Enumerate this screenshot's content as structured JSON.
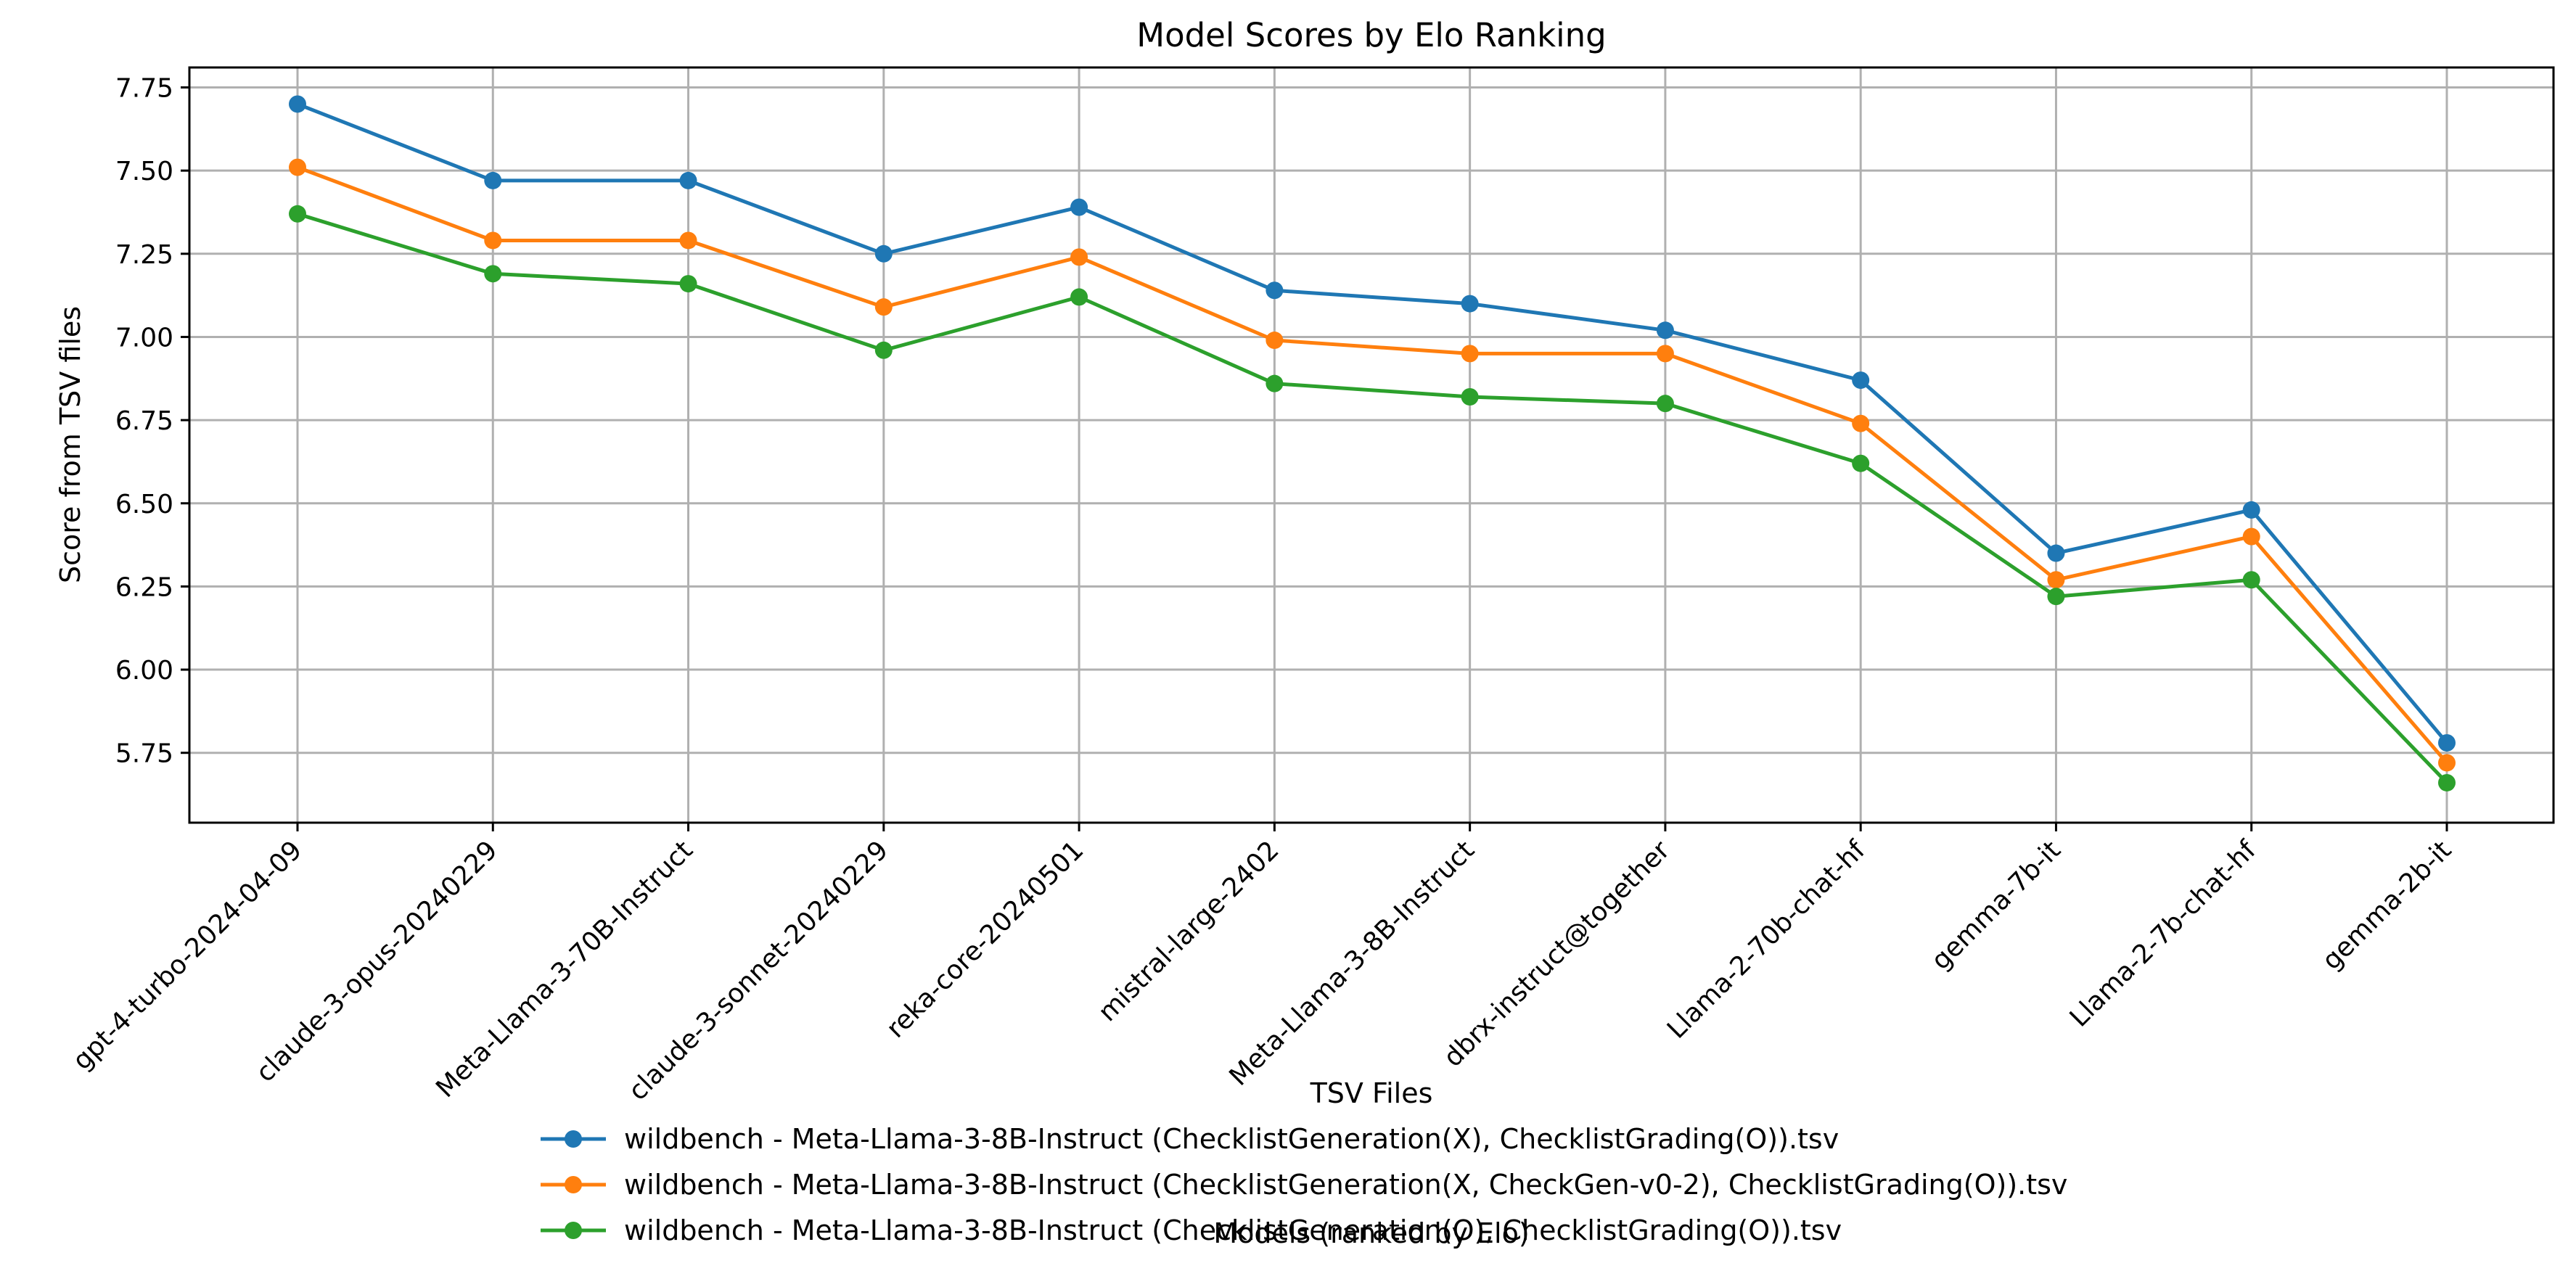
{
  "chart_data": {
    "type": "line",
    "title": "Model Scores by Elo Ranking",
    "xlabel": "Models (ranked by Elo)",
    "ylabel": "Score from TSV files",
    "categories": [
      "gpt-4-turbo-2024-04-09",
      "claude-3-opus-20240229",
      "Meta-Llama-3-70B-Instruct",
      "claude-3-sonnet-20240229",
      "reka-core-20240501",
      "mistral-large-2402",
      "Meta-Llama-3-8B-Instruct",
      "dbrx-instruct@together",
      "Llama-2-70b-chat-hf",
      "gemma-7b-it",
      "Llama-2-7b-chat-hf",
      "gemma-2b-it"
    ],
    "ylim": [
      5.54,
      7.81
    ],
    "yticks": [
      "5.75",
      "6.00",
      "6.25",
      "6.50",
      "6.75",
      "7.00",
      "7.25",
      "7.50",
      "7.75"
    ],
    "grid": true,
    "legend": {
      "title": "TSV Files",
      "placement": "bottom-center"
    },
    "series": [
      {
        "name": "wildbench - Meta-Llama-3-8B-Instruct (ChecklistGeneration(X), ChecklistGrading(O)).tsv",
        "color": "#1f77b4",
        "values": [
          7.7,
          7.47,
          7.47,
          7.25,
          7.39,
          7.14,
          7.1,
          7.02,
          6.87,
          6.35,
          6.48,
          5.78
        ]
      },
      {
        "name": "wildbench - Meta-Llama-3-8B-Instruct (ChecklistGeneration(X, CheckGen-v0-2), ChecklistGrading(O)).tsv",
        "color": "#ff7f0e",
        "values": [
          7.51,
          7.29,
          7.29,
          7.09,
          7.24,
          6.99,
          6.95,
          6.95,
          6.74,
          6.27,
          6.4,
          5.72
        ]
      },
      {
        "name": "wildbench - Meta-Llama-3-8B-Instruct (ChecklistGeneration(O), ChecklistGrading(O)).tsv",
        "color": "#2ca02c",
        "values": [
          7.37,
          7.19,
          7.16,
          6.96,
          7.12,
          6.86,
          6.82,
          6.8,
          6.62,
          6.22,
          6.27,
          5.66
        ]
      }
    ]
  }
}
